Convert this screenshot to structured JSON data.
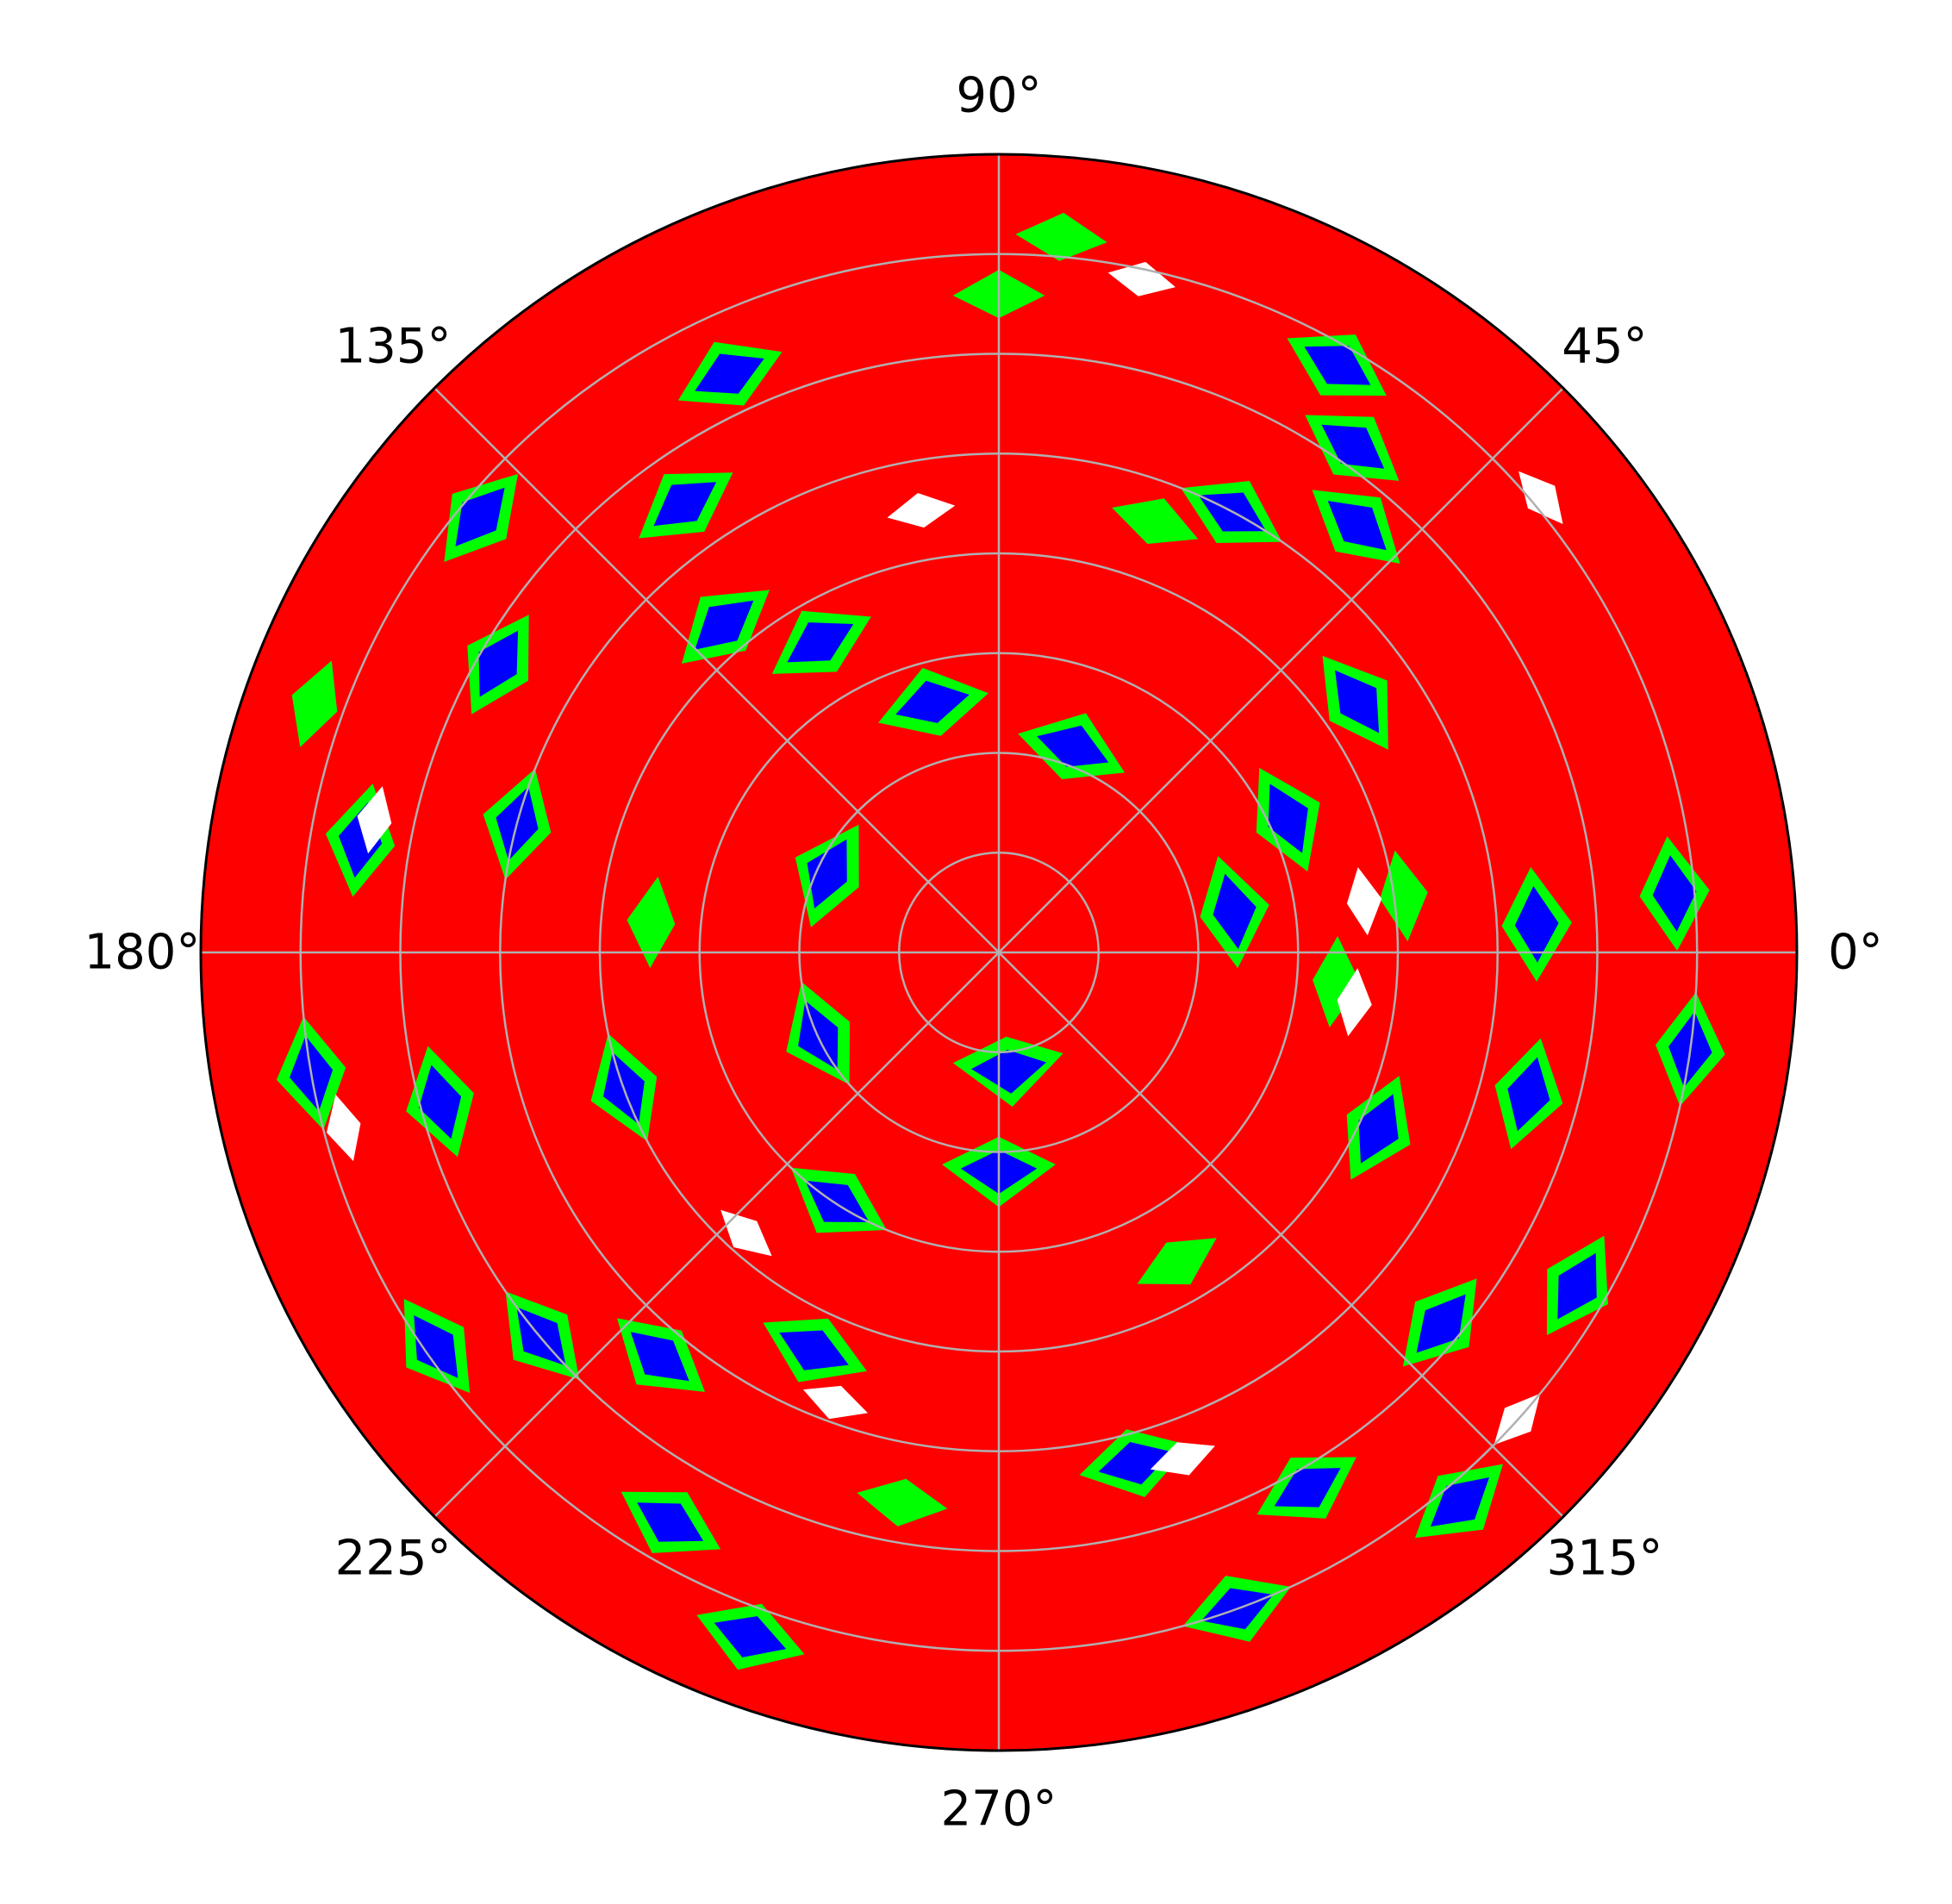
{
  "chart_data": {
    "type": "polar-contourf",
    "title": "",
    "theta_tick_labels": [
      "0°",
      "45°",
      "90°",
      "135°",
      "180°",
      "225°",
      "270°",
      "315°"
    ],
    "theta_ticks_deg": [
      0,
      45,
      90,
      135,
      180,
      225,
      270,
      315
    ],
    "radial_rings": 8,
    "radial_tick_labels_shown": false,
    "grid": true,
    "levels": [
      {
        "name": "level-1",
        "color": "#ff0000"
      },
      {
        "name": "level-2",
        "color": "#00ff00"
      },
      {
        "name": "level-3",
        "color": "#0000ff"
      }
    ],
    "background_color": "#ffffff",
    "regions": [
      {
        "theta": 90,
        "r": 6.6,
        "color": "#00ff00"
      },
      {
        "theta": 85,
        "r": 7.2,
        "color": "#00ff00"
      },
      {
        "theta": 60,
        "r": 6.8,
        "color": "#0000ff"
      },
      {
        "theta": 55,
        "r": 6.2,
        "color": "#0000ff"
      },
      {
        "theta": 50,
        "r": 5.6,
        "color": "#0000ff"
      },
      {
        "theta": 62,
        "r": 5.0,
        "color": "#0000ff"
      },
      {
        "theta": 70,
        "r": 4.6,
        "color": "#00ff00"
      },
      {
        "theta": 78,
        "r": 6.9,
        "color": "#ffffff"
      },
      {
        "theta": 40,
        "r": 7.1,
        "color": "#ffffff"
      },
      {
        "theta": 35,
        "r": 4.4,
        "color": "#0000ff"
      },
      {
        "theta": 25,
        "r": 3.2,
        "color": "#0000ff"
      },
      {
        "theta": 10,
        "r": 2.4,
        "color": "#0000ff"
      },
      {
        "theta": 5,
        "r": 6.8,
        "color": "#0000ff"
      },
      {
        "theta": 3,
        "r": 5.4,
        "color": "#0000ff"
      },
      {
        "theta": 8,
        "r": 4.1,
        "color": "#00ff00"
      },
      {
        "theta": 115,
        "r": 6.4,
        "color": "#0000ff"
      },
      {
        "theta": 125,
        "r": 5.5,
        "color": "#0000ff"
      },
      {
        "theta": 130,
        "r": 4.3,
        "color": "#0000ff"
      },
      {
        "theta": 140,
        "r": 6.8,
        "color": "#0000ff"
      },
      {
        "theta": 150,
        "r": 5.8,
        "color": "#0000ff"
      },
      {
        "theta": 120,
        "r": 3.6,
        "color": "#0000ff"
      },
      {
        "theta": 105,
        "r": 2.6,
        "color": "#0000ff"
      },
      {
        "theta": 160,
        "r": 7.3,
        "color": "#00ff00"
      },
      {
        "theta": 170,
        "r": 6.5,
        "color": "#0000ff"
      },
      {
        "theta": 165,
        "r": 5.0,
        "color": "#0000ff"
      },
      {
        "theta": 175,
        "r": 3.5,
        "color": "#00ff00"
      },
      {
        "theta": 155,
        "r": 1.9,
        "color": "#0000ff"
      },
      {
        "theta": 190,
        "r": 7.0,
        "color": "#0000ff"
      },
      {
        "theta": 195,
        "r": 5.8,
        "color": "#0000ff"
      },
      {
        "theta": 200,
        "r": 4.0,
        "color": "#0000ff"
      },
      {
        "theta": 205,
        "r": 2.0,
        "color": "#0000ff"
      },
      {
        "theta": 215,
        "r": 6.9,
        "color": "#0000ff"
      },
      {
        "theta": 220,
        "r": 6.0,
        "color": "#0000ff"
      },
      {
        "theta": 230,
        "r": 5.3,
        "color": "#0000ff"
      },
      {
        "theta": 240,
        "r": 6.6,
        "color": "#0000ff"
      },
      {
        "theta": 245,
        "r": 4.4,
        "color": "#0000ff"
      },
      {
        "theta": 250,
        "r": 7.3,
        "color": "#0000ff"
      },
      {
        "theta": 260,
        "r": 5.6,
        "color": "#00ff00"
      },
      {
        "theta": 270,
        "r": 2.2,
        "color": "#0000ff"
      },
      {
        "theta": 275,
        "r": 1.2,
        "color": "#0000ff"
      },
      {
        "theta": 285,
        "r": 5.3,
        "color": "#0000ff"
      },
      {
        "theta": 290,
        "r": 7.0,
        "color": "#0000ff"
      },
      {
        "theta": 300,
        "r": 6.2,
        "color": "#0000ff"
      },
      {
        "theta": 310,
        "r": 7.2,
        "color": "#0000ff"
      },
      {
        "theta": 320,
        "r": 5.8,
        "color": "#0000ff"
      },
      {
        "theta": 330,
        "r": 6.7,
        "color": "#0000ff"
      },
      {
        "theta": 335,
        "r": 4.2,
        "color": "#0000ff"
      },
      {
        "theta": 345,
        "r": 5.5,
        "color": "#0000ff"
      },
      {
        "theta": 352,
        "r": 7.0,
        "color": "#0000ff"
      },
      {
        "theta": 355,
        "r": 3.4,
        "color": "#00ff00"
      },
      {
        "theta": 237,
        "r": 3.0,
        "color": "#0000ff"
      },
      {
        "theta": 300,
        "r": 3.6,
        "color": "#00ff00"
      },
      {
        "theta": 70,
        "r": 2.2,
        "color": "#0000ff"
      },
      {
        "theta": 100,
        "r": 4.5,
        "color": "#ffffff"
      },
      {
        "theta": 250,
        "r": 4.8,
        "color": "#ffffff"
      },
      {
        "theta": 168,
        "r": 6.4,
        "color": "#ffffff"
      },
      {
        "theta": 195,
        "r": 6.8,
        "color": "#ffffff"
      },
      {
        "theta": 318,
        "r": 7.0,
        "color": "#ffffff"
      },
      {
        "theta": 8,
        "r": 3.7,
        "color": "#ffffff"
      },
      {
        "theta": 352,
        "r": 3.6,
        "color": "#ffffff"
      },
      {
        "theta": 290,
        "r": 5.4,
        "color": "#ffffff"
      },
      {
        "theta": 228,
        "r": 3.8,
        "color": "#ffffff"
      }
    ]
  }
}
